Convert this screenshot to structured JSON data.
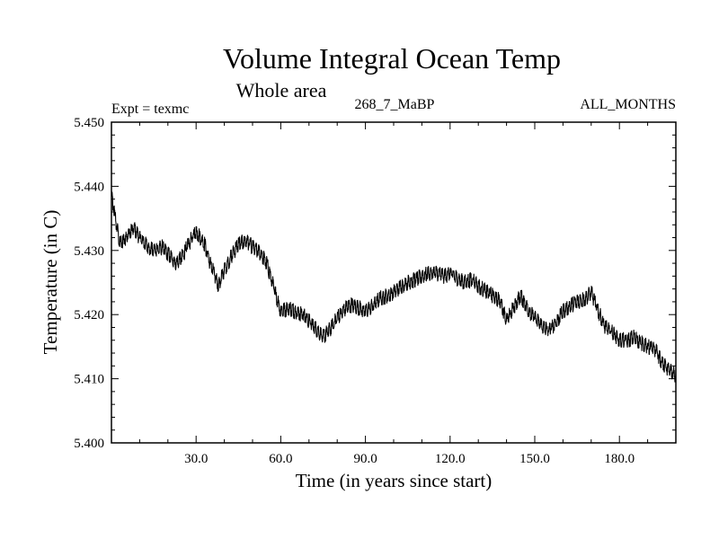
{
  "chart_data": {
    "type": "line",
    "title": "Volume Integral Ocean Temp",
    "subtitle": "Whole area",
    "annotations": {
      "left": "Expt = texmc",
      "center": "268_7_MaBP",
      "right": "ALL_MONTHS"
    },
    "xlabel": "Time (in years since start)",
    "ylabel": "Temperature (in C)",
    "xlim": [
      0,
      200
    ],
    "ylim": [
      5.4,
      5.45
    ],
    "x_ticks": [
      30,
      60,
      90,
      120,
      150,
      180
    ],
    "x_tick_labels": [
      "30.0",
      "60.0",
      "90.0",
      "120.0",
      "150.0",
      "180.0"
    ],
    "y_ticks": [
      5.4,
      5.41,
      5.42,
      5.43,
      5.44,
      5.45
    ],
    "y_tick_labels": [
      "5.400",
      "5.410",
      "5.420",
      "5.430",
      "5.440",
      "5.450"
    ],
    "line_color": "#000000",
    "noise_amplitude": 0.0012,
    "series": [
      {
        "name": "texmc",
        "x": [
          0,
          1,
          3,
          5,
          8,
          10,
          13,
          15,
          18,
          20,
          23,
          25,
          28,
          30,
          33,
          35,
          38,
          40,
          43,
          45,
          48,
          50,
          53,
          55,
          58,
          60,
          63,
          65,
          68,
          70,
          73,
          75,
          78,
          80,
          83,
          85,
          88,
          90,
          93,
          95,
          98,
          100,
          103,
          105,
          108,
          110,
          113,
          115,
          118,
          120,
          123,
          125,
          128,
          130,
          133,
          135,
          138,
          140,
          143,
          145,
          148,
          150,
          153,
          155,
          158,
          160,
          163,
          165,
          168,
          170,
          173,
          175,
          178,
          180,
          183,
          185,
          188,
          190,
          193,
          195,
          198,
          200
        ],
        "values": [
          5.4385,
          5.436,
          5.431,
          5.432,
          5.4335,
          5.432,
          5.4305,
          5.43,
          5.4305,
          5.4295,
          5.428,
          5.429,
          5.4315,
          5.433,
          5.431,
          5.428,
          5.4245,
          5.427,
          5.4295,
          5.431,
          5.4315,
          5.4305,
          5.4295,
          5.428,
          5.4235,
          5.4205,
          5.421,
          5.4205,
          5.42,
          5.419,
          5.4175,
          5.4165,
          5.418,
          5.4195,
          5.421,
          5.4215,
          5.421,
          5.4205,
          5.4215,
          5.4225,
          5.423,
          5.4235,
          5.4245,
          5.425,
          5.4255,
          5.426,
          5.4265,
          5.4265,
          5.426,
          5.4265,
          5.4255,
          5.425,
          5.4255,
          5.4245,
          5.4235,
          5.423,
          5.422,
          5.419,
          5.4215,
          5.423,
          5.4205,
          5.4195,
          5.418,
          5.4175,
          5.419,
          5.4205,
          5.4215,
          5.422,
          5.4225,
          5.4235,
          5.42,
          5.418,
          5.417,
          5.416,
          5.416,
          5.4165,
          5.4155,
          5.415,
          5.4145,
          5.4125,
          5.4112,
          5.4105
        ]
      }
    ]
  }
}
